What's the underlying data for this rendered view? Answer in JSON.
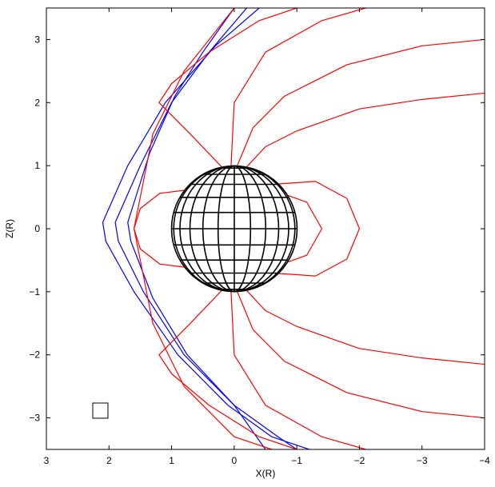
{
  "chart_data": {
    "type": "line",
    "xlabel": "X(R)",
    "ylabel": "Z(R)",
    "xlim": [
      3,
      -4
    ],
    "ylim": [
      -3.5,
      3.5
    ],
    "xticks": [
      3,
      2,
      1,
      0,
      {
        "value": -1,
        "label": "−1"
      },
      {
        "value": -2,
        "label": "−2"
      },
      {
        "value": -3,
        "label": "−3"
      },
      {
        "value": -4,
        "label": "−4"
      }
    ],
    "yticks": [
      {
        "value": -3,
        "label": "−3"
      },
      {
        "value": -2,
        "label": "−2"
      },
      {
        "value": -1,
        "label": "−1"
      },
      0,
      1,
      2,
      3
    ],
    "series": [
      {
        "color": "#0000ff",
        "x": [
          -0.4,
          0.3,
          1.1,
          1.7,
          2.1,
          2.05,
          1.6,
          0.9,
          0.1,
          -0.6,
          -1.2
        ],
        "values": [
          3.5,
          2.9,
          2.0,
          1.0,
          0.1,
          -0.2,
          -1.0,
          -2.0,
          -2.8,
          -3.3,
          -3.5
        ]
      },
      {
        "color": "#0000ff",
        "x": [
          -0.2,
          0.4,
          1.0,
          1.5,
          1.9,
          1.85,
          1.45,
          0.8,
          0.0,
          -0.7,
          -1.0
        ],
        "values": [
          3.5,
          2.8,
          2.0,
          1.0,
          0.1,
          -0.2,
          -1.0,
          -2.0,
          -2.8,
          -3.3,
          -3.5
        ]
      },
      {
        "color": "#0000ff",
        "x": [
          0.0,
          0.5,
          0.95,
          1.35,
          1.7,
          1.65,
          1.3,
          0.75,
          0.0,
          -0.5
        ],
        "values": [
          3.5,
          2.8,
          2.1,
          1.2,
          0.1,
          -0.2,
          -1.1,
          -2.0,
          -2.8,
          -3.5
        ]
      },
      {
        "color": "#ff0000",
        "x": [
          0.0,
          0.8,
          1.3,
          1.6,
          1.3,
          0.8,
          0.0,
          -0.6
        ],
        "values": [
          3.5,
          2.5,
          1.5,
          0,
          -1.5,
          -2.5,
          -3.3,
          -3.5
        ]
      },
      {
        "color": "#ff0000",
        "x": [
          0.79,
          1.19,
          1.5,
          1.6,
          1.5,
          1.19,
          0.79
        ],
        "values": [
          0.61,
          0.56,
          0.32,
          0,
          -0.32,
          -0.56,
          -0.61
        ]
      },
      {
        "color": "#ff0000",
        "x": [
          -0.71,
          -1.3,
          -1.8,
          -2.0,
          -1.8,
          -1.3,
          -0.71
        ],
        "values": [
          0.71,
          0.75,
          0.48,
          0,
          -0.48,
          -0.75,
          -0.71
        ]
      },
      {
        "color": "#ff0000",
        "x": [
          -0.85,
          -1.16,
          -1.4,
          -1.16,
          -0.85
        ],
        "values": [
          0.53,
          0.42,
          0,
          -0.42,
          -0.53
        ]
      },
      {
        "color": "#ff0000",
        "x": [
          -0.2,
          -0.5,
          -1.0,
          -2.0,
          -3.0,
          -4.0
        ],
        "values": [
          0.98,
          1.3,
          1.55,
          1.9,
          2.05,
          2.15
        ]
      },
      {
        "color": "#ff0000",
        "x": [
          -0.2,
          -0.5,
          -1.0,
          -2.0,
          -3.0,
          -4.0
        ],
        "values": [
          -0.98,
          -1.3,
          -1.55,
          -1.9,
          -2.05,
          -2.15
        ]
      },
      {
        "color": "#ff0000",
        "x": [
          -0.05,
          -0.3,
          -0.8,
          -1.8,
          -3.0,
          -4.0
        ],
        "values": [
          1.0,
          1.6,
          2.1,
          2.6,
          2.9,
          3.0
        ]
      },
      {
        "color": "#ff0000",
        "x": [
          -0.05,
          -0.3,
          -0.8,
          -1.8,
          -3.0,
          -4.0
        ],
        "values": [
          -1.0,
          -1.6,
          -2.1,
          -2.6,
          -2.9,
          -3.0
        ]
      },
      {
        "color": "#ff0000",
        "x": [
          0.05,
          0.0,
          -0.5,
          -1.4,
          -2.1
        ],
        "values": [
          1.0,
          2.0,
          2.8,
          3.3,
          3.5
        ]
      },
      {
        "color": "#ff0000",
        "x": [
          0.05,
          0.0,
          -0.5,
          -1.4,
          -2.1
        ],
        "values": [
          -1.0,
          -2.0,
          -2.8,
          -3.3,
          -3.5
        ]
      },
      {
        "color": "#ff0000",
        "x": [
          0.2,
          0.7,
          1.2,
          1.0,
          0.4,
          -0.4,
          -1.0
        ],
        "values": [
          0.98,
          1.5,
          2.0,
          2.3,
          2.8,
          3.3,
          3.5
        ]
      },
      {
        "color": "#ff0000",
        "x": [
          0.2,
          0.7,
          1.2,
          1.0,
          0.4,
          -0.4,
          -1.0
        ],
        "values": [
          -0.98,
          -1.5,
          -2.0,
          -2.3,
          -2.8,
          -3.3,
          -3.5
        ]
      }
    ]
  }
}
